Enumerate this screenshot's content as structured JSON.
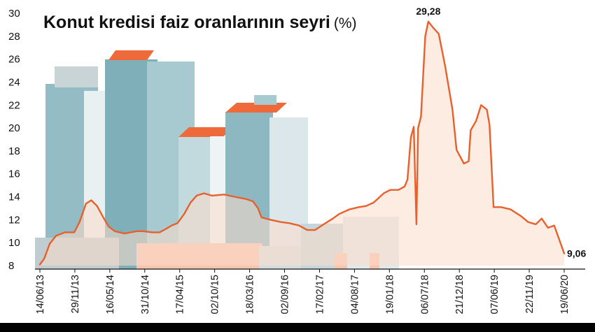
{
  "chart_data": {
    "type": "line",
    "title": "Konut kredisi faiz oranlarının seyri",
    "title_unit": "(%)",
    "xlabel": "",
    "ylabel": "",
    "ylim": [
      8,
      30
    ],
    "yticks": [
      8,
      10,
      12,
      14,
      16,
      18,
      20,
      22,
      24,
      26,
      28,
      30
    ],
    "grid": false,
    "legend": "none",
    "xtick_labels": [
      "14/06/13",
      "29/11/13",
      "16/05/14",
      "31/10/14",
      "17/04/15",
      "02/10/15",
      "18/03/16",
      "02/09/16",
      "17/02/17",
      "04/08/17",
      "19/01/18",
      "06/07/18",
      "21/12/18",
      "07/06/19",
      "22/11/19",
      "19/06/20"
    ],
    "series": [
      {
        "name": "",
        "color": "#e8602c",
        "points": [
          [
            "2013-06-14",
            8.1
          ],
          [
            "2013-07-05",
            8.6
          ],
          [
            "2013-08-01",
            9.9
          ],
          [
            "2013-09-01",
            10.6
          ],
          [
            "2013-10-15",
            10.9
          ],
          [
            "2013-11-29",
            10.9
          ],
          [
            "2013-12-25",
            11.8
          ],
          [
            "2014-01-25",
            13.4
          ],
          [
            "2014-02-20",
            13.7
          ],
          [
            "2014-03-20",
            13.2
          ],
          [
            "2014-04-20",
            12.2
          ],
          [
            "2014-05-16",
            11.4
          ],
          [
            "2014-06-15",
            11.0
          ],
          [
            "2014-08-01",
            10.8
          ],
          [
            "2014-10-01",
            11.0
          ],
          [
            "2014-10-31",
            11.0
          ],
          [
            "2014-12-15",
            10.9
          ],
          [
            "2015-01-20",
            10.9
          ],
          [
            "2015-02-20",
            11.2
          ],
          [
            "2015-03-20",
            11.5
          ],
          [
            "2015-04-17",
            11.7
          ],
          [
            "2015-05-20",
            12.5
          ],
          [
            "2015-06-20",
            13.5
          ],
          [
            "2015-07-20",
            14.1
          ],
          [
            "2015-08-25",
            14.3
          ],
          [
            "2015-10-02",
            14.1
          ],
          [
            "2015-12-01",
            14.2
          ],
          [
            "2016-01-20",
            14.0
          ],
          [
            "2016-03-18",
            13.8
          ],
          [
            "2016-04-20",
            13.6
          ],
          [
            "2016-05-15",
            13.0
          ],
          [
            "2016-06-01",
            12.2
          ],
          [
            "2016-07-15",
            12.0
          ],
          [
            "2016-09-02",
            11.8
          ],
          [
            "2016-10-15",
            11.7
          ],
          [
            "2016-12-01",
            11.5
          ],
          [
            "2017-01-10",
            11.1
          ],
          [
            "2017-02-17",
            11.1
          ],
          [
            "2017-04-01",
            11.6
          ],
          [
            "2017-05-15",
            12.1
          ],
          [
            "2017-06-15",
            12.5
          ],
          [
            "2017-08-04",
            12.9
          ],
          [
            "2017-09-20",
            13.1
          ],
          [
            "2017-10-25",
            13.2
          ],
          [
            "2017-12-01",
            13.5
          ],
          [
            "2018-01-19",
            14.3
          ],
          [
            "2018-02-20",
            14.6
          ],
          [
            "2018-04-01",
            14.6
          ],
          [
            "2018-05-01",
            14.9
          ],
          [
            "2018-05-15",
            15.5
          ],
          [
            "2018-06-01",
            19.2
          ],
          [
            "2018-06-15",
            20.1
          ],
          [
            "2018-06-28",
            11.6
          ],
          [
            "2018-07-06",
            20.0
          ],
          [
            "2018-07-20",
            21.0
          ],
          [
            "2018-08-10",
            28.0
          ],
          [
            "2018-08-25",
            29.28
          ],
          [
            "2018-09-15",
            28.8
          ],
          [
            "2018-10-15",
            28.2
          ],
          [
            "2018-11-15",
            25.4
          ],
          [
            "2018-12-21",
            21.6
          ],
          [
            "2019-01-10",
            18.1
          ],
          [
            "2019-02-15",
            16.9
          ],
          [
            "2019-03-10",
            17.1
          ],
          [
            "2019-03-20",
            19.8
          ],
          [
            "2019-04-15",
            20.6
          ],
          [
            "2019-05-10",
            22.0
          ],
          [
            "2019-06-07",
            21.6
          ],
          [
            "2019-06-20",
            20.3
          ],
          [
            "2019-07-10",
            13.1
          ],
          [
            "2019-08-15",
            13.1
          ],
          [
            "2019-10-01",
            12.9
          ],
          [
            "2019-11-22",
            12.3
          ],
          [
            "2019-12-25",
            11.8
          ],
          [
            "2020-02-01",
            11.6
          ],
          [
            "2020-03-01",
            12.1
          ],
          [
            "2020-04-01",
            11.3
          ],
          [
            "2020-05-01",
            11.5
          ],
          [
            "2020-06-19",
            9.06
          ]
        ]
      }
    ],
    "annotations": [
      {
        "label": "29,28",
        "date": "2018-08-25",
        "value": 29.28
      },
      {
        "label": "9,06",
        "date": "2020-06-19",
        "value": 9.06
      }
    ]
  }
}
